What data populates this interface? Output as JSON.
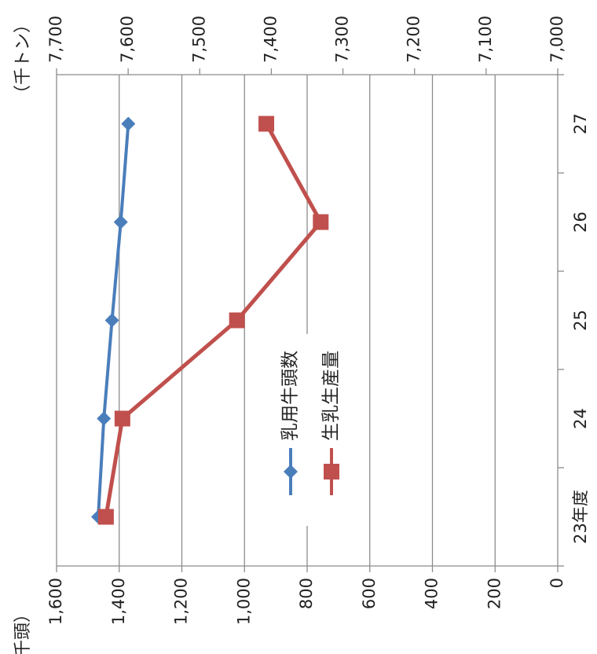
{
  "chart_data": {
    "type": "line",
    "orientation": "rotated-90-clockwise",
    "categories": [
      "23年度",
      "24",
      "25",
      "26",
      "27"
    ],
    "series": [
      {
        "name": "乳用牛頭数",
        "axis": "primary",
        "color": "#4A7EBB",
        "marker": "diamond",
        "values": [
          1467,
          1449,
          1423,
          1395,
          1371
        ]
      },
      {
        "name": "生乳生産量",
        "axis": "secondary",
        "color": "#C0504D",
        "marker": "square",
        "values": [
          7631,
          7608,
          7448,
          7331,
          7407
        ]
      }
    ],
    "primary_axis": {
      "unit_label": "（千頭）",
      "range": [
        0,
        1600
      ],
      "ticks": [
        "0",
        "200",
        "400",
        "600",
        "800",
        "1,000",
        "1,200",
        "1,400",
        "1,600"
      ]
    },
    "secondary_axis": {
      "unit_label": "（千トン）",
      "range": [
        7000,
        7700
      ],
      "reversed": true,
      "ticks": [
        "7,000",
        "7,100",
        "7,200",
        "7,300",
        "7,400",
        "7,500",
        "7,600",
        "7,700"
      ]
    },
    "gridlines": true,
    "legend_position": "center"
  }
}
